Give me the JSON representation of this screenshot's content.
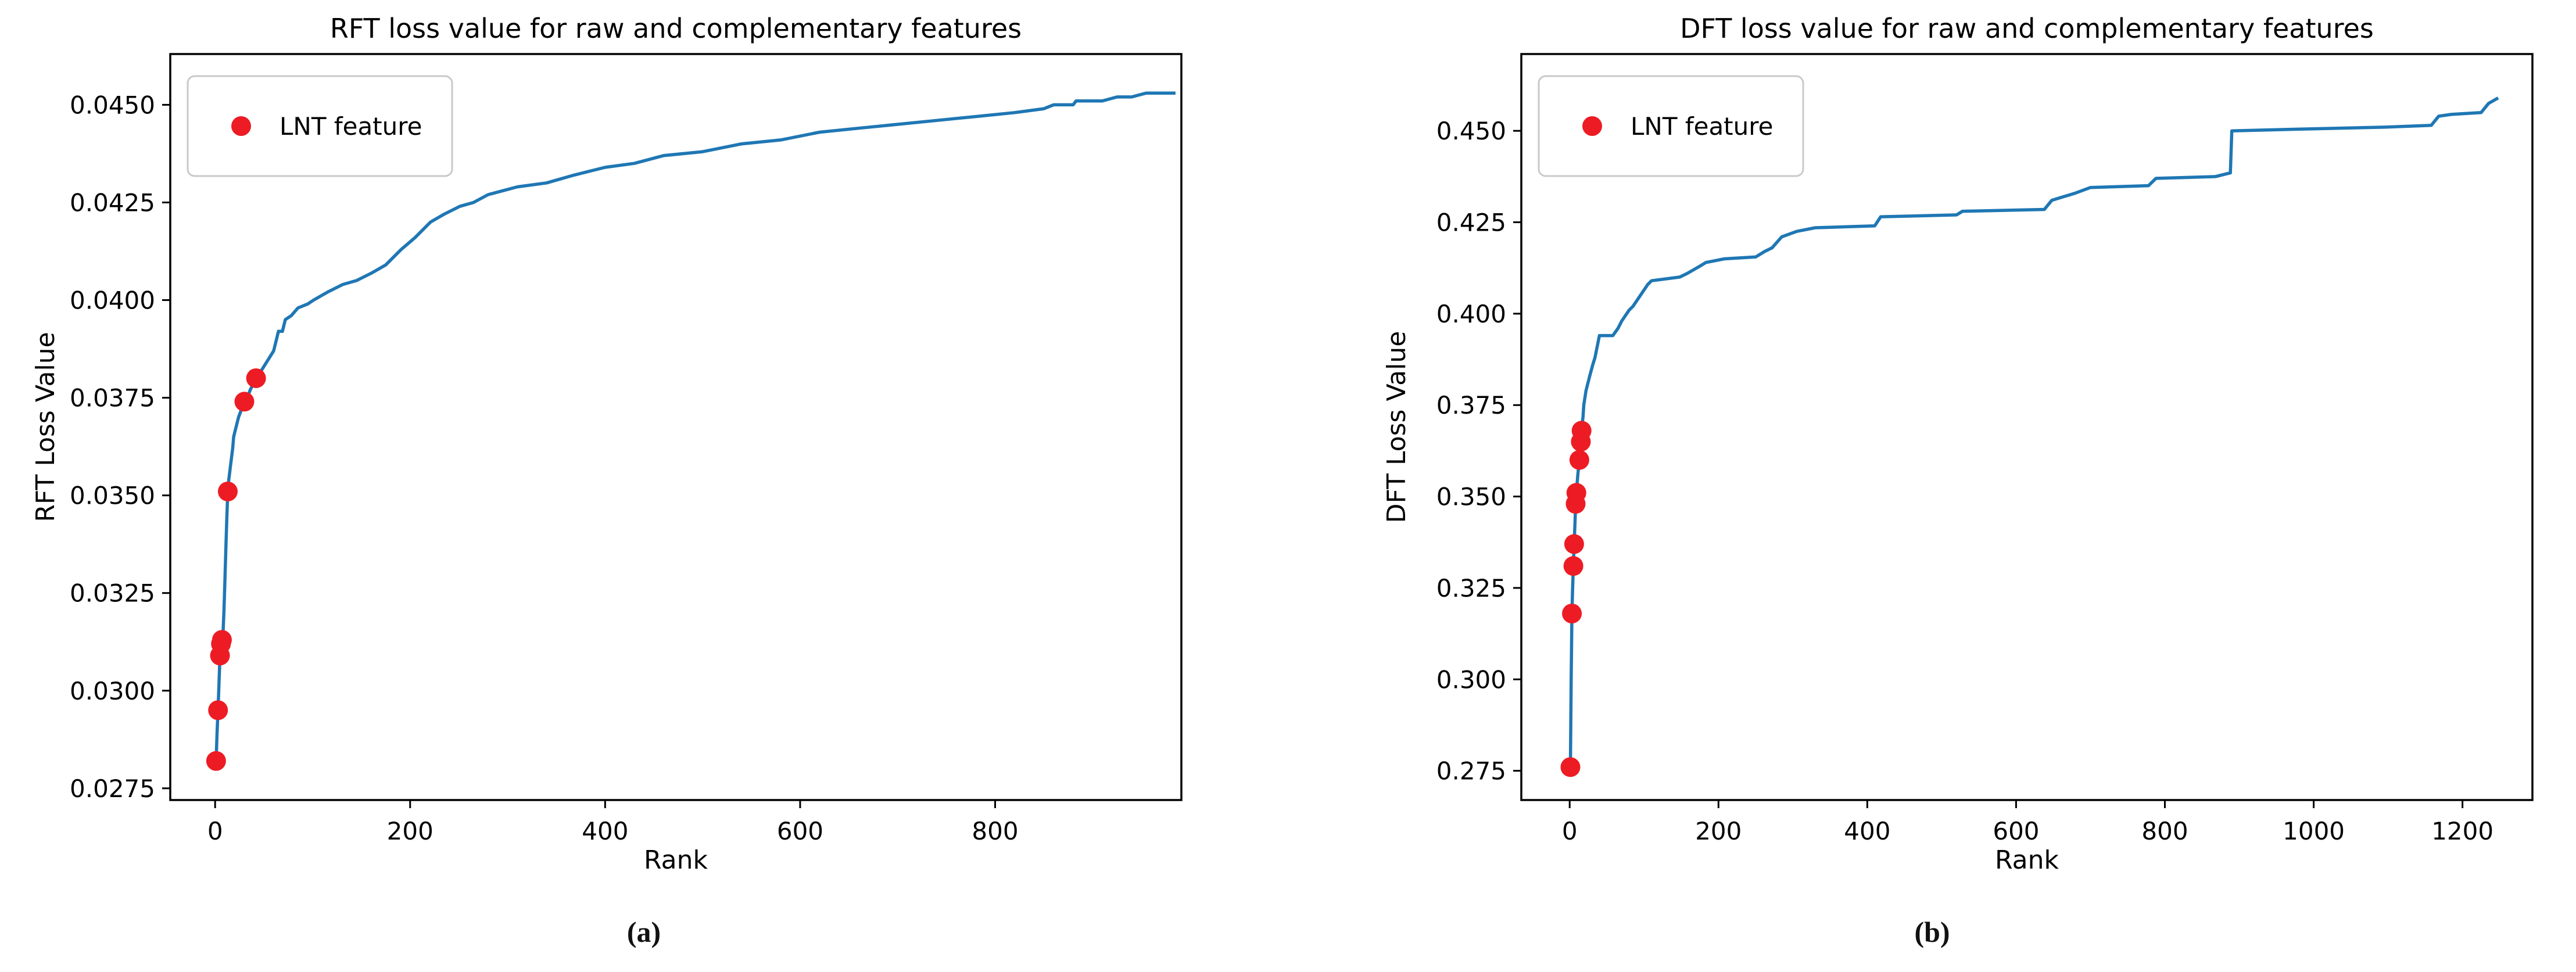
{
  "page": {
    "background": "#ffffff",
    "text_color": "#000000"
  },
  "chart_data": [
    {
      "type": "line",
      "title": "RFT loss value for raw and complementary features",
      "xlabel": "Rank",
      "ylabel": "RFT Loss Value",
      "caption": "(a)",
      "legend": {
        "label": "LNT feature",
        "marker_color": "#ed1c24",
        "position": "upper-left"
      },
      "grid": false,
      "line_color": "#1f77b4",
      "scatter_color": "#ed1c24",
      "xlim": [
        -46,
        991
      ],
      "ylim": [
        0.0272,
        0.0463
      ],
      "x_ticks": [
        {
          "v": 0,
          "label": "0"
        },
        {
          "v": 200,
          "label": "200"
        },
        {
          "v": 400,
          "label": "400"
        },
        {
          "v": 600,
          "label": "600"
        },
        {
          "v": 800,
          "label": "800"
        }
      ],
      "y_ticks": [
        {
          "v": 0.0275,
          "label": "0.0275"
        },
        {
          "v": 0.03,
          "label": "0.0300"
        },
        {
          "v": 0.0325,
          "label": "0.0325"
        },
        {
          "v": 0.035,
          "label": "0.0350"
        },
        {
          "v": 0.0375,
          "label": "0.0375"
        },
        {
          "v": 0.04,
          "label": "0.0400"
        },
        {
          "v": 0.0425,
          "label": "0.0425"
        },
        {
          "v": 0.045,
          "label": "0.0450"
        }
      ],
      "series": [
        {
          "name": "raw-and-complementary-loss-curve",
          "type": "line",
          "points": [
            [
              0,
              0.0282
            ],
            [
              1,
              0.0282
            ],
            [
              2,
              0.0289
            ],
            [
              3,
              0.0295
            ],
            [
              4,
              0.0302
            ],
            [
              5,
              0.0309
            ],
            [
              6,
              0.0311
            ],
            [
              7,
              0.0313
            ],
            [
              8,
              0.0314
            ],
            [
              9,
              0.032
            ],
            [
              10,
              0.0328
            ],
            [
              11,
              0.0336
            ],
            [
              12,
              0.0344
            ],
            [
              13,
              0.0351
            ],
            [
              14,
              0.0354
            ],
            [
              16,
              0.0358
            ],
            [
              18,
              0.0362
            ],
            [
              19,
              0.0365
            ],
            [
              21,
              0.0367
            ],
            [
              24,
              0.037
            ],
            [
              27,
              0.0372
            ],
            [
              30,
              0.0374
            ],
            [
              33,
              0.0375
            ],
            [
              36,
              0.0377
            ],
            [
              40,
              0.0379
            ],
            [
              42,
              0.038
            ],
            [
              45,
              0.0381
            ],
            [
              50,
              0.0383
            ],
            [
              55,
              0.0385
            ],
            [
              60,
              0.0387
            ],
            [
              63,
              0.039
            ],
            [
              65,
              0.0392
            ],
            [
              69,
              0.0392
            ],
            [
              72,
              0.0395
            ],
            [
              78,
              0.0396
            ],
            [
              85,
              0.0398
            ],
            [
              95,
              0.0399
            ],
            [
              101,
              0.04
            ],
            [
              115,
              0.0402
            ],
            [
              131,
              0.0404
            ],
            [
              145,
              0.0405
            ],
            [
              161,
              0.0407
            ],
            [
              175,
              0.0409
            ],
            [
              191,
              0.0413
            ],
            [
              205,
              0.0416
            ],
            [
              221,
              0.042
            ],
            [
              235,
              0.0422
            ],
            [
              251,
              0.0424
            ],
            [
              265,
              0.0425
            ],
            [
              280,
              0.0427
            ],
            [
              295,
              0.0428
            ],
            [
              310,
              0.0429
            ],
            [
              340,
              0.043
            ],
            [
              368,
              0.0432
            ],
            [
              400,
              0.0434
            ],
            [
              430,
              0.0435
            ],
            [
              460,
              0.0437
            ],
            [
              500,
              0.0438
            ],
            [
              540,
              0.044
            ],
            [
              580,
              0.0441
            ],
            [
              620,
              0.0443
            ],
            [
              660,
              0.0444
            ],
            [
              700,
              0.0445
            ],
            [
              740,
              0.0446
            ],
            [
              780,
              0.0447
            ],
            [
              820,
              0.0448
            ],
            [
              850,
              0.0449
            ],
            [
              860,
              0.045
            ],
            [
              880,
              0.045
            ],
            [
              883,
              0.0451
            ],
            [
              910,
              0.0451
            ],
            [
              925,
              0.0452
            ],
            [
              940,
              0.0452
            ],
            [
              955,
              0.0453
            ],
            [
              985,
              0.0453
            ]
          ]
        },
        {
          "name": "lnt-feature-points",
          "type": "scatter",
          "points": [
            [
              1,
              0.0282
            ],
            [
              3,
              0.0295
            ],
            [
              5,
              0.0309
            ],
            [
              6,
              0.0312
            ],
            [
              7,
              0.0313
            ],
            [
              13,
              0.0351
            ],
            [
              30,
              0.0374
            ],
            [
              42,
              0.038
            ]
          ]
        }
      ]
    },
    {
      "type": "line",
      "title": "DFT loss value for raw and complementary features",
      "xlabel": "Rank",
      "ylabel": "DFT Loss Value",
      "caption": "(b)",
      "legend": {
        "label": "LNT feature",
        "marker_color": "#ed1c24",
        "position": "upper-left"
      },
      "grid": false,
      "line_color": "#1f77b4",
      "scatter_color": "#ed1c24",
      "xlim": [
        -65,
        1294
      ],
      "ylim": [
        0.267,
        0.471
      ],
      "x_ticks": [
        {
          "v": 0,
          "label": "0"
        },
        {
          "v": 200,
          "label": "200"
        },
        {
          "v": 400,
          "label": "400"
        },
        {
          "v": 600,
          "label": "600"
        },
        {
          "v": 800,
          "label": "800"
        },
        {
          "v": 1000,
          "label": "1000"
        },
        {
          "v": 1200,
          "label": "1200"
        }
      ],
      "y_ticks": [
        {
          "v": 0.275,
          "label": "0.275"
        },
        {
          "v": 0.3,
          "label": "0.300"
        },
        {
          "v": 0.325,
          "label": "0.325"
        },
        {
          "v": 0.35,
          "label": "0.350"
        },
        {
          "v": 0.375,
          "label": "0.375"
        },
        {
          "v": 0.4,
          "label": "0.400"
        },
        {
          "v": 0.425,
          "label": "0.425"
        },
        {
          "v": 0.45,
          "label": "0.450"
        }
      ],
      "series": [
        {
          "name": "raw-and-complementary-loss-curve",
          "type": "line",
          "points": [
            [
              0,
              0.276
            ],
            [
              1,
              0.276
            ],
            [
              2,
              0.3
            ],
            [
              3,
              0.318
            ],
            [
              4,
              0.325
            ],
            [
              5,
              0.331
            ],
            [
              6,
              0.337
            ],
            [
              7,
              0.342
            ],
            [
              8,
              0.348
            ],
            [
              9,
              0.351
            ],
            [
              11,
              0.356
            ],
            [
              13,
              0.36
            ],
            [
              15,
              0.365
            ],
            [
              16,
              0.368
            ],
            [
              18,
              0.372
            ],
            [
              19,
              0.375
            ],
            [
              22,
              0.379
            ],
            [
              27,
              0.383
            ],
            [
              31,
              0.386
            ],
            [
              34,
              0.388
            ],
            [
              37,
              0.391
            ],
            [
              40,
              0.394
            ],
            [
              58,
              0.394
            ],
            [
              65,
              0.396
            ],
            [
              70,
              0.398
            ],
            [
              80,
              0.401
            ],
            [
              85,
              0.402
            ],
            [
              95,
              0.405
            ],
            [
              105,
              0.408
            ],
            [
              110,
              0.409
            ],
            [
              148,
              0.41
            ],
            [
              158,
              0.411
            ],
            [
              175,
              0.413
            ],
            [
              183,
              0.414
            ],
            [
              208,
              0.415
            ],
            [
              250,
              0.4155
            ],
            [
              262,
              0.417
            ],
            [
              272,
              0.418
            ],
            [
              285,
              0.421
            ],
            [
              305,
              0.4225
            ],
            [
              330,
              0.4235
            ],
            [
              410,
              0.424
            ],
            [
              418,
              0.4265
            ],
            [
              520,
              0.427
            ],
            [
              528,
              0.428
            ],
            [
              638,
              0.4285
            ],
            [
              648,
              0.431
            ],
            [
              680,
              0.433
            ],
            [
              700,
              0.4345
            ],
            [
              778,
              0.435
            ],
            [
              788,
              0.437
            ],
            [
              868,
              0.4375
            ],
            [
              878,
              0.438
            ],
            [
              888,
              0.4385
            ],
            [
              890,
              0.45
            ],
            [
              990,
              0.4505
            ],
            [
              1095,
              0.451
            ],
            [
              1158,
              0.4515
            ],
            [
              1168,
              0.454
            ],
            [
              1185,
              0.4545
            ],
            [
              1225,
              0.455
            ],
            [
              1235,
              0.4575
            ],
            [
              1248,
              0.459
            ]
          ]
        },
        {
          "name": "lnt-feature-points",
          "type": "scatter",
          "points": [
            [
              1,
              0.276
            ],
            [
              3,
              0.318
            ],
            [
              5,
              0.331
            ],
            [
              6,
              0.337
            ],
            [
              8,
              0.348
            ],
            [
              9,
              0.351
            ],
            [
              13,
              0.36
            ],
            [
              15,
              0.365
            ],
            [
              16,
              0.368
            ]
          ]
        }
      ]
    }
  ]
}
